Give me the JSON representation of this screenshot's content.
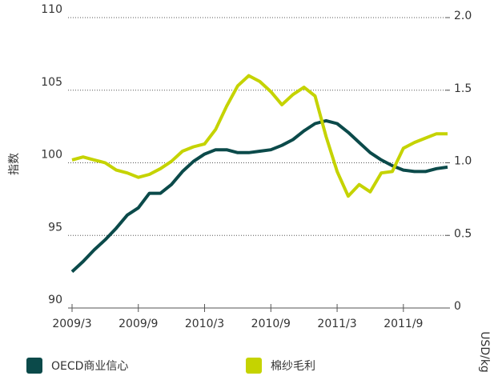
{
  "chart_data": {
    "type": "line",
    "ylabel": "指数",
    "y2label": "USD/kg",
    "categories": [
      "2009/3",
      null,
      null,
      null,
      null,
      null,
      "2009/9",
      null,
      null,
      null,
      null,
      null,
      "2010/3",
      null,
      null,
      null,
      null,
      null,
      "2010/9",
      null,
      null,
      null,
      null,
      null,
      "2011/3",
      null,
      null,
      null,
      null,
      null,
      "2011/9",
      null,
      null,
      null,
      null
    ],
    "series": [
      {
        "name": "OECD商业信心",
        "color": "#0b4a4a",
        "axis": "y",
        "values": [
          92.5,
          93.2,
          94.0,
          94.7,
          95.5,
          96.4,
          96.9,
          97.9,
          97.9,
          98.5,
          99.4,
          100.1,
          100.6,
          100.9,
          100.9,
          100.7,
          100.7,
          100.8,
          100.9,
          101.2,
          101.6,
          102.2,
          102.7,
          102.9,
          102.7,
          102.1,
          101.4,
          100.7,
          100.2,
          99.8,
          99.5,
          99.4,
          99.4,
          99.6,
          99.7
        ]
      },
      {
        "name": "棉纱毛利",
        "color": "#c5d300",
        "axis": "y2",
        "values": [
          1.02,
          1.04,
          1.02,
          1.0,
          0.95,
          0.93,
          0.9,
          0.92,
          0.96,
          1.01,
          1.08,
          1.11,
          1.13,
          1.23,
          1.39,
          1.53,
          1.6,
          1.56,
          1.49,
          1.4,
          1.47,
          1.52,
          1.46,
          1.18,
          0.94,
          0.77,
          0.85,
          0.8,
          0.93,
          0.94,
          1.1,
          1.14,
          1.17,
          1.2,
          1.2
        ]
      }
    ],
    "ylim": [
      90,
      110
    ],
    "yticks": [
      90,
      95,
      100,
      105,
      110
    ],
    "y2lim": [
      0,
      2.0
    ],
    "y2ticks": [
      0,
      0.5,
      {
        "value": 1.0,
        "label": "1.0"
      },
      1.5,
      {
        "value": 2.0,
        "label": "2.0"
      }
    ],
    "grid": true,
    "legend": "bottom"
  }
}
